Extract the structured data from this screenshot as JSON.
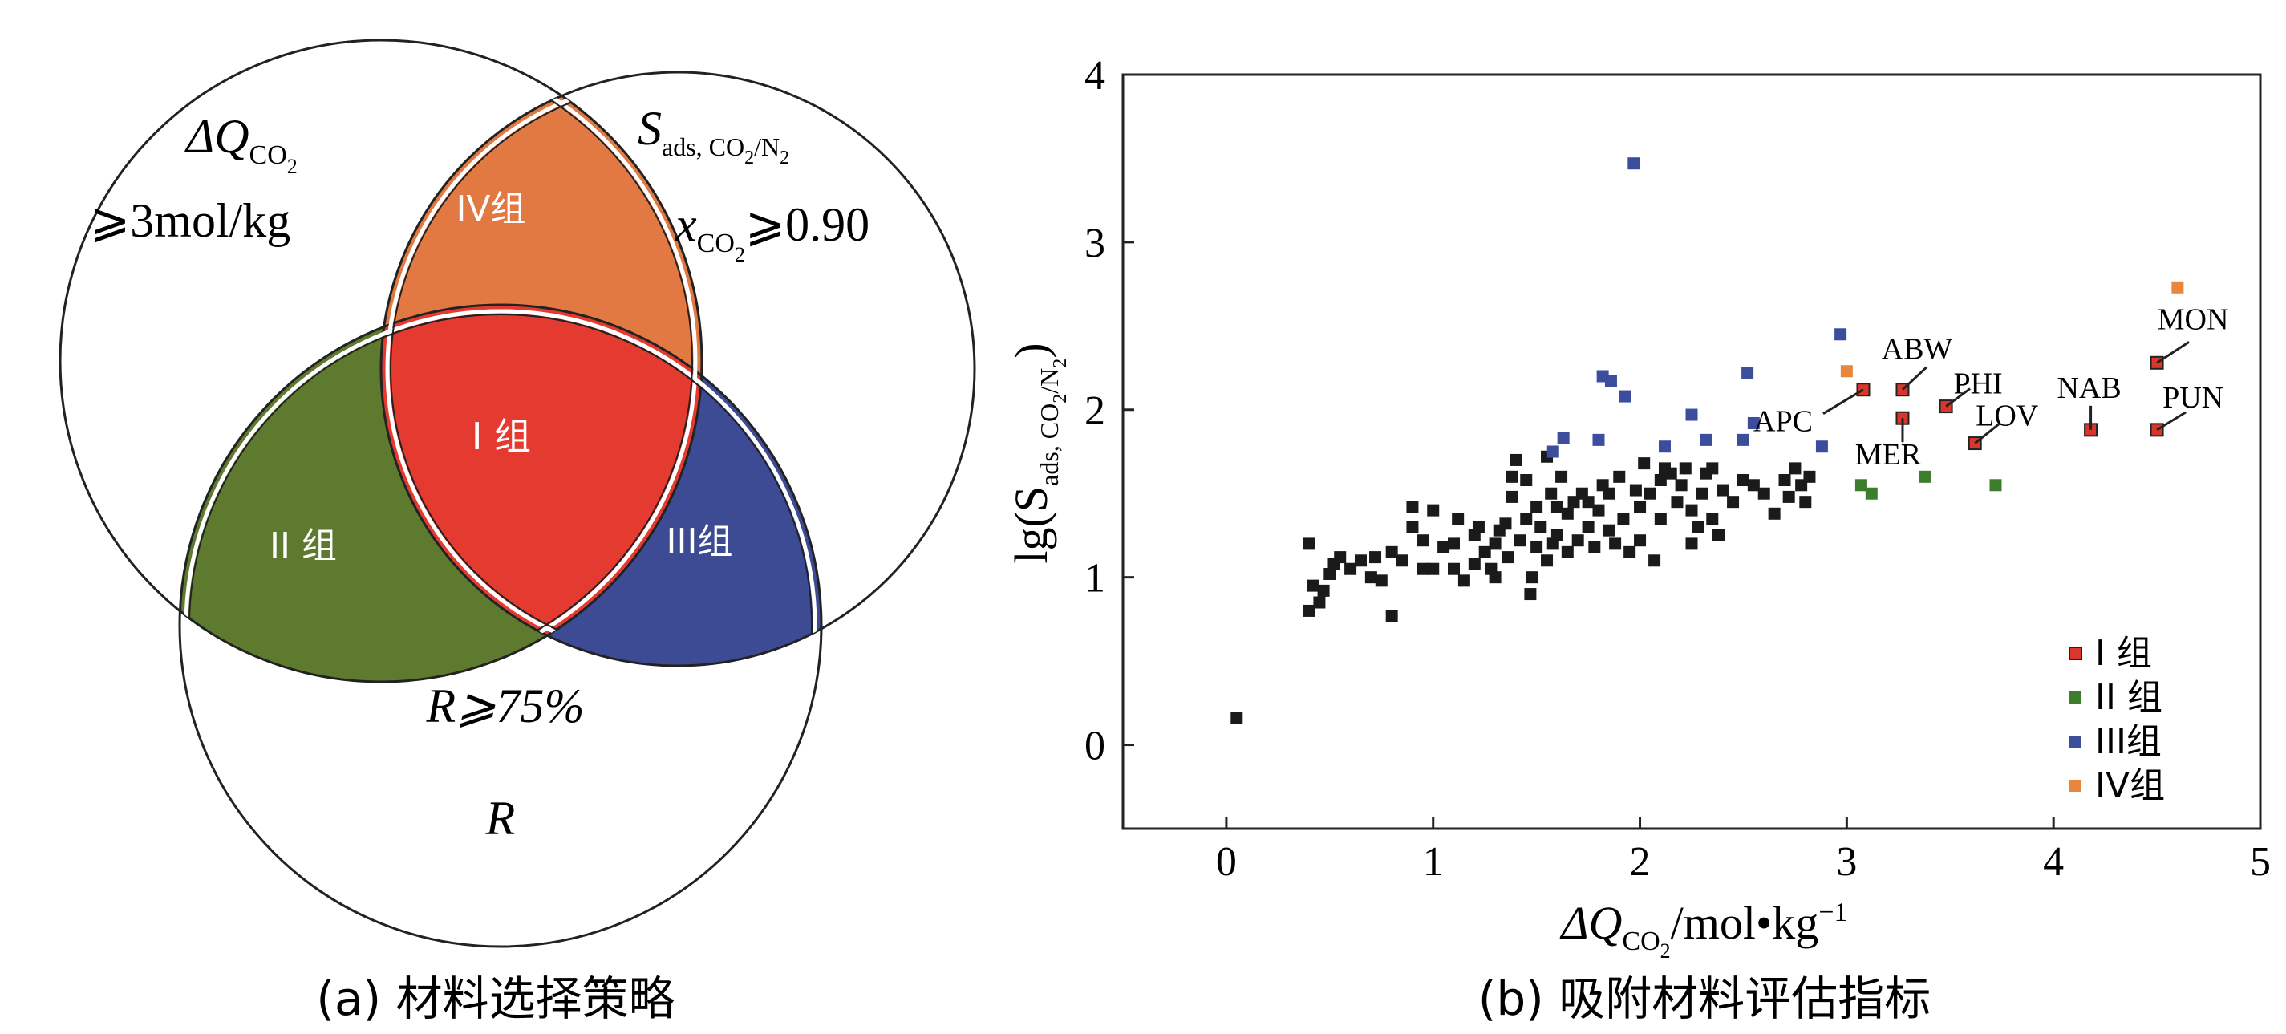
{
  "panel_a": {
    "caption": "(a) 材料选择策略",
    "circle_left": {
      "symbol_main": "ΔQ",
      "symbol_sub_co": "CO",
      "symbol_sub_2": "2",
      "criterion": "⩾3mol/kg"
    },
    "circle_right": {
      "symbol_main": "S",
      "symbol_sub": "ads, CO",
      "symbol_sub_2": "2",
      "symbol_sub_slash": "/N",
      "symbol_sub_2b": "2",
      "criterion_x": "x",
      "criterion_sub": "CO",
      "criterion_sub_2": "2",
      "criterion_value": "⩾0.90"
    },
    "circle_bottom": {
      "criterion": "R⩾75%",
      "symbol": "R"
    },
    "regions": {
      "group1": {
        "label": "I 组",
        "color": "#e53a2f"
      },
      "group2": {
        "label": "II 组",
        "color": "#5e7a2e"
      },
      "group3": {
        "label": "III组",
        "color": "#3d4a94"
      },
      "group4": {
        "label": "IV组",
        "color": "#e27842"
      }
    }
  },
  "panel_b": {
    "caption": "(b) 吸附材料评估指标",
    "xlabel_main": "ΔQ",
    "xlabel_sub": "CO",
    "xlabel_sub2": "2",
    "xlabel_unit": "/mol•kg",
    "xlabel_exp": "−1",
    "ylabel_pre": "lg(S",
    "ylabel_sub": "ads, CO",
    "ylabel_sub2": "2",
    "ylabel_sub3": "/N",
    "ylabel_sub4": "2",
    "ylabel_post": ")"
  },
  "chart_data": {
    "type": "scatter",
    "xlim": [
      -0.5,
      5
    ],
    "ylim": [
      -0.5,
      4
    ],
    "x_ticks": [
      "0",
      "1",
      "2",
      "3",
      "4",
      "5"
    ],
    "y_ticks": [
      "0",
      "1",
      "2",
      "3",
      "4"
    ],
    "grid": false,
    "legend_position": "bottom-right",
    "colors": {
      "black": "#1a1a1a",
      "group1": "#d9372c",
      "group2": "#3f7d2e",
      "group3": "#3c4d9e",
      "group4": "#e8863d"
    },
    "series": [
      {
        "name": "",
        "color_key": "black",
        "points": [
          [
            0.05,
            0.16
          ],
          [
            0.4,
            0.8
          ],
          [
            0.4,
            1.2
          ],
          [
            0.42,
            0.95
          ],
          [
            0.45,
            0.85
          ],
          [
            0.47,
            0.92
          ],
          [
            0.5,
            1.02
          ],
          [
            0.52,
            1.08
          ],
          [
            0.6,
            1.05
          ],
          [
            0.65,
            1.1
          ],
          [
            0.7,
            1.0
          ],
          [
            0.72,
            1.12
          ],
          [
            0.75,
            0.98
          ],
          [
            0.8,
            0.77
          ],
          [
            0.8,
            1.15
          ],
          [
            0.85,
            1.1
          ],
          [
            0.9,
            1.3
          ],
          [
            0.9,
            1.42
          ],
          [
            0.95,
            1.05
          ],
          [
            1.0,
            1.4
          ],
          [
            1.0,
            1.05
          ],
          [
            1.05,
            1.18
          ],
          [
            1.1,
            1.2
          ],
          [
            1.1,
            1.05
          ],
          [
            1.12,
            1.35
          ],
          [
            1.15,
            0.98
          ],
          [
            1.2,
            1.25
          ],
          [
            1.2,
            1.08
          ],
          [
            1.22,
            1.3
          ],
          [
            1.25,
            1.15
          ],
          [
            1.28,
            1.05
          ],
          [
            1.3,
            1.2
          ],
          [
            1.32,
            1.28
          ],
          [
            1.35,
            1.32
          ],
          [
            1.36,
            1.12
          ],
          [
            1.38,
            1.48
          ],
          [
            1.38,
            1.6
          ],
          [
            1.4,
            1.7
          ],
          [
            1.42,
            1.22
          ],
          [
            1.45,
            1.35
          ],
          [
            1.47,
            0.9
          ],
          [
            1.48,
            1.0
          ],
          [
            1.5,
            1.18
          ],
          [
            1.5,
            1.42
          ],
          [
            1.52,
            1.3
          ],
          [
            1.55,
            1.1
          ],
          [
            1.55,
            1.72
          ],
          [
            1.57,
            1.5
          ],
          [
            1.58,
            1.2
          ],
          [
            1.6,
            1.25
          ],
          [
            1.62,
            1.6
          ],
          [
            1.65,
            1.15
          ],
          [
            1.65,
            1.38
          ],
          [
            1.68,
            1.45
          ],
          [
            1.7,
            1.22
          ],
          [
            1.72,
            1.5
          ],
          [
            1.75,
            1.3
          ],
          [
            1.78,
            1.18
          ],
          [
            1.8,
            1.4
          ],
          [
            1.82,
            1.55
          ],
          [
            1.85,
            1.28
          ],
          [
            1.85,
            1.5
          ],
          [
            1.88,
            1.2
          ],
          [
            1.9,
            1.6
          ],
          [
            1.92,
            1.35
          ],
          [
            1.95,
            1.15
          ],
          [
            1.98,
            1.52
          ],
          [
            2.0,
            1.42
          ],
          [
            2.0,
            1.22
          ],
          [
            2.02,
            1.68
          ],
          [
            2.05,
            1.5
          ],
          [
            2.07,
            1.1
          ],
          [
            2.1,
            1.58
          ],
          [
            2.1,
            1.35
          ],
          [
            2.12,
            1.65
          ],
          [
            2.15,
            1.62
          ],
          [
            2.18,
            1.45
          ],
          [
            2.2,
            1.55
          ],
          [
            2.22,
            1.65
          ],
          [
            2.25,
            1.4
          ],
          [
            2.25,
            1.2
          ],
          [
            2.28,
            1.3
          ],
          [
            2.3,
            1.5
          ],
          [
            2.32,
            1.62
          ],
          [
            2.35,
            1.35
          ],
          [
            2.38,
            1.25
          ],
          [
            2.4,
            1.52
          ],
          [
            2.45,
            1.45
          ],
          [
            2.5,
            1.58
          ],
          [
            2.55,
            1.55
          ],
          [
            2.6,
            1.5
          ],
          [
            2.65,
            1.38
          ],
          [
            2.7,
            1.58
          ],
          [
            2.72,
            1.48
          ],
          [
            2.75,
            1.65
          ],
          [
            2.78,
            1.55
          ],
          [
            2.8,
            1.45
          ],
          [
            2.82,
            1.6
          ],
          [
            1.6,
            1.42
          ],
          [
            1.45,
            1.58
          ],
          [
            1.3,
            1.0
          ],
          [
            0.55,
            1.12
          ],
          [
            0.95,
            1.22
          ],
          [
            1.75,
            1.45
          ],
          [
            2.35,
            1.65
          ]
        ]
      },
      {
        "name": "I 组",
        "color_key": "group1",
        "points": [
          [
            3.08,
            2.12
          ],
          [
            3.27,
            2.12
          ],
          [
            3.27,
            1.95
          ],
          [
            3.48,
            2.02
          ],
          [
            3.62,
            1.8
          ],
          [
            4.18,
            1.88
          ],
          [
            4.5,
            2.28
          ],
          [
            4.5,
            1.88
          ]
        ],
        "labels": [
          {
            "text": "APC",
            "x": 3.08,
            "y": 2.12
          },
          {
            "text": "ABW",
            "x": 3.27,
            "y": 2.12
          },
          {
            "text": "MER",
            "x": 3.27,
            "y": 1.95
          },
          {
            "text": "PHI",
            "x": 3.48,
            "y": 2.02
          },
          {
            "text": "LOV",
            "x": 3.62,
            "y": 1.8
          },
          {
            "text": "NAB",
            "x": 4.18,
            "y": 1.88
          },
          {
            "text": "MON",
            "x": 4.5,
            "y": 2.28
          },
          {
            "text": "PUN",
            "x": 4.5,
            "y": 1.88
          }
        ]
      },
      {
        "name": "II 组",
        "color_key": "group2",
        "points": [
          [
            3.07,
            1.55
          ],
          [
            3.12,
            1.5
          ],
          [
            3.38,
            1.6
          ],
          [
            3.72,
            1.55
          ]
        ]
      },
      {
        "name": "III组",
        "color_key": "group3",
        "points": [
          [
            1.97,
            3.47
          ],
          [
            1.58,
            1.75
          ],
          [
            1.63,
            1.83
          ],
          [
            1.8,
            1.82
          ],
          [
            1.82,
            2.2
          ],
          [
            1.86,
            2.17
          ],
          [
            1.93,
            2.08
          ],
          [
            2.12,
            1.78
          ],
          [
            2.25,
            1.97
          ],
          [
            2.32,
            1.82
          ],
          [
            2.5,
            1.82
          ],
          [
            2.52,
            2.22
          ],
          [
            2.55,
            1.92
          ],
          [
            2.88,
            1.78
          ],
          [
            2.97,
            2.45
          ]
        ]
      },
      {
        "name": "IV组",
        "color_key": "group4",
        "points": [
          [
            3.0,
            2.23
          ],
          [
            4.6,
            2.73
          ]
        ]
      }
    ]
  }
}
